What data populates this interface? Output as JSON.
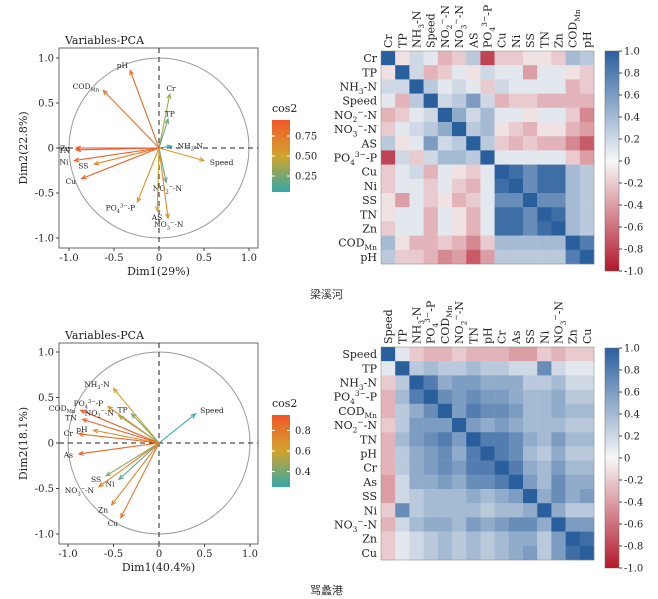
{
  "captions": [
    "梁溪河",
    "骂蠡港"
  ],
  "colors": {
    "cos2_low": "#34a7a7",
    "cos2_mid": "#d1a42c",
    "cos2_high": "#f2572a",
    "corr_pos": "#2a5f9e",
    "corr_neg": "#b2182b",
    "corr_zero": "#f7f7f7"
  },
  "chart_data": [
    {
      "type": "scatter",
      "title": "Variables-PCA",
      "xlabel": "Dim1(29%)",
      "ylabel": "Dim2(22.8%)",
      "xlim": [
        -1.0,
        1.0
      ],
      "ylim": [
        -1.0,
        1.0
      ],
      "xticks": [
        "-1.0",
        "-0.5",
        "0",
        "0.5",
        "1.0"
      ],
      "yticks": [
        "1.0",
        "0.5",
        "0",
        "-0.5",
        "-1.0"
      ],
      "legend": {
        "title": "cos2",
        "ticks": [
          "0.75",
          "0.50",
          "0.25"
        ],
        "tick_values": [
          0.75,
          0.5,
          0.25
        ],
        "range": [
          0.05,
          0.95
        ],
        "placement": "right"
      },
      "vectors": [
        {
          "label": "pH",
          "x": -0.32,
          "y": 0.86,
          "cos2": 0.85
        },
        {
          "label": "COD_Mn",
          "x": -0.62,
          "y": 0.64,
          "cos2": 0.8
        },
        {
          "label": "Cr",
          "x": 0.12,
          "y": 0.6,
          "cos2": 0.38
        },
        {
          "label": "TP",
          "x": 0.1,
          "y": 0.32,
          "cos2": 0.2
        },
        {
          "label": "NH3-N",
          "x": 0.14,
          "y": 0.02,
          "cos2": 0.08
        },
        {
          "label": "Speed",
          "x": 0.5,
          "y": -0.14,
          "cos2": 0.55
        },
        {
          "label": "NO2-N",
          "x": 0.08,
          "y": -0.38,
          "cos2": 0.2
        },
        {
          "label": "NO3-N",
          "x": 0.1,
          "y": -0.78,
          "cos2": 0.62
        },
        {
          "label": "AS",
          "x": -0.02,
          "y": -0.7,
          "cos2": 0.5
        },
        {
          "label": "PO4-P",
          "x": -0.24,
          "y": -0.6,
          "cos2": 0.58
        },
        {
          "label": "TN",
          "x": -0.92,
          "y": -0.02,
          "cos2": 0.95
        },
        {
          "label": "Zn",
          "x": -0.92,
          "y": 0.0,
          "cos2": 0.95
        },
        {
          "label": "Ni",
          "x": -0.94,
          "y": -0.14,
          "cos2": 0.9
        },
        {
          "label": "SS",
          "x": -0.72,
          "y": -0.18,
          "cos2": 0.65
        },
        {
          "label": "Cu",
          "x": -0.86,
          "y": -0.34,
          "cos2": 0.9
        }
      ]
    },
    {
      "type": "heatmap",
      "scale_ticks": [
        "1.0",
        "0.8",
        "0.6",
        "0.4",
        "0.2",
        "0",
        "-0.2",
        "-0.4",
        "-0.6",
        "-0.8",
        "-1.0"
      ],
      "labels": [
        "Cr",
        "TP",
        "NH3-N",
        "Speed",
        "NO2-N",
        "NO3-N",
        "AS",
        "PO4-P",
        "Cu",
        "Ni",
        "SS",
        "TN",
        "Zn",
        "COD_Mn",
        "pH"
      ],
      "matrix": [
        [
          1,
          -0.1,
          0.2,
          0.1,
          -0.3,
          -0.2,
          0.3,
          -0.8,
          -0.2,
          -0.2,
          -0.1,
          -0.1,
          -0.2,
          0.4,
          0.3
        ],
        [
          -0.1,
          1,
          0.2,
          -0.3,
          -0.2,
          0.1,
          -0.1,
          0.2,
          0.1,
          0.1,
          -0.4,
          0.1,
          0.1,
          -0.1,
          -0.2
        ],
        [
          0.2,
          0.2,
          1,
          0.3,
          0.1,
          0.2,
          0.1,
          -0.2,
          0.2,
          0.1,
          0.1,
          0.1,
          0.1,
          -0.3,
          -0.2
        ],
        [
          0.1,
          -0.3,
          0.3,
          1,
          0.2,
          0.3,
          0.6,
          0.2,
          -0.3,
          -0.2,
          -0.2,
          -0.3,
          -0.3,
          -0.3,
          -0.3
        ],
        [
          -0.3,
          -0.2,
          0.1,
          0.2,
          1,
          0.5,
          0.2,
          0.4,
          0.1,
          0.1,
          -0.1,
          0.1,
          0.1,
          -0.2,
          -0.5
        ],
        [
          -0.2,
          0.1,
          0.2,
          0.3,
          0.5,
          1,
          0.3,
          0.4,
          -0.1,
          -0.2,
          -0.3,
          -0.1,
          -0.1,
          -0.3,
          -0.4
        ],
        [
          0.3,
          -0.1,
          0.1,
          0.6,
          0.2,
          0.3,
          1,
          0.3,
          -0.2,
          -0.3,
          -0.2,
          -0.3,
          -0.3,
          -0.5,
          -0.7
        ],
        [
          -0.8,
          0.2,
          -0.2,
          0.2,
          0.4,
          0.4,
          0.3,
          1,
          0.1,
          0.1,
          0.1,
          0.1,
          0.1,
          -0.2,
          -0.4
        ],
        [
          -0.2,
          0.1,
          0.2,
          -0.3,
          0.1,
          -0.1,
          -0.2,
          0.1,
          1,
          0.9,
          0.7,
          0.9,
          0.9,
          0.4,
          0.3
        ],
        [
          -0.2,
          0.1,
          0.1,
          -0.2,
          0.1,
          -0.2,
          -0.3,
          0.1,
          0.9,
          1,
          0.7,
          0.9,
          0.9,
          0.4,
          0.3
        ],
        [
          -0.1,
          -0.4,
          0.1,
          -0.2,
          -0.1,
          -0.3,
          -0.2,
          0.1,
          0.7,
          0.7,
          1,
          0.7,
          0.7,
          0.4,
          0.3
        ],
        [
          -0.1,
          0.1,
          0.1,
          -0.3,
          0.1,
          -0.1,
          -0.3,
          0.1,
          0.9,
          0.9,
          0.7,
          1,
          0.9,
          0.4,
          0.3
        ],
        [
          -0.2,
          0.1,
          0.1,
          -0.3,
          0.1,
          -0.1,
          -0.3,
          0.1,
          0.9,
          0.9,
          0.7,
          0.9,
          1,
          0.4,
          0.3
        ],
        [
          0.4,
          -0.1,
          -0.3,
          -0.3,
          -0.2,
          -0.3,
          -0.5,
          -0.2,
          0.4,
          0.4,
          0.4,
          0.4,
          0.4,
          1,
          0.8
        ],
        [
          0.3,
          -0.2,
          -0.2,
          -0.3,
          -0.5,
          -0.4,
          -0.7,
          -0.4,
          0.3,
          0.3,
          0.3,
          0.3,
          0.3,
          0.8,
          1
        ]
      ]
    },
    {
      "type": "scatter",
      "title": "Variables-PCA",
      "xlabel": "Dim1(40.4%)",
      "ylabel": "Dim2(18.1%)",
      "xlim": [
        -1.0,
        1.0
      ],
      "ylim": [
        -1.0,
        1.0
      ],
      "xticks": [
        "-1.0",
        "-0.5",
        "0",
        "0.5",
        "1.0"
      ],
      "yticks": [
        "1.0",
        "0.5",
        "0",
        "-0.5",
        "-1.0"
      ],
      "legend": {
        "title": "cos2",
        "ticks": [
          "0.8",
          "0.6",
          "0.4"
        ],
        "tick_values": [
          0.8,
          0.6,
          0.4
        ],
        "range": [
          0.25,
          0.95
        ],
        "placement": "right"
      },
      "vectors": [
        {
          "label": "NH3-N",
          "x": -0.5,
          "y": 0.6,
          "cos2": 0.6
        },
        {
          "label": "PO4-P",
          "x": -0.56,
          "y": 0.4,
          "cos2": 0.7
        },
        {
          "label": "COD_Mn",
          "x": -0.86,
          "y": 0.36,
          "cos2": 0.92
        },
        {
          "label": "TN",
          "x": -0.84,
          "y": 0.26,
          "cos2": 0.9
        },
        {
          "label": "NO2-N",
          "x": -0.44,
          "y": 0.3,
          "cos2": 0.5
        },
        {
          "label": "TP",
          "x": -0.3,
          "y": 0.32,
          "cos2": 0.4
        },
        {
          "label": "Cr",
          "x": -0.88,
          "y": 0.1,
          "cos2": 0.85
        },
        {
          "label": "pH",
          "x": -0.72,
          "y": 0.14,
          "cos2": 0.7
        },
        {
          "label": "As",
          "x": -0.88,
          "y": -0.12,
          "cos2": 0.88
        },
        {
          "label": "Speed",
          "x": 0.4,
          "y": 0.32,
          "cos2": 0.25
        },
        {
          "label": "SS",
          "x": -0.58,
          "y": -0.36,
          "cos2": 0.45
        },
        {
          "label": "Ni",
          "x": -0.44,
          "y": -0.4,
          "cos2": 0.35
        },
        {
          "label": "NO3-N",
          "x": -0.66,
          "y": -0.48,
          "cos2": 0.75
        },
        {
          "label": "Zn",
          "x": -0.52,
          "y": -0.68,
          "cos2": 0.72
        },
        {
          "label": "Cu",
          "x": -0.42,
          "y": -0.82,
          "cos2": 0.82
        }
      ]
    },
    {
      "type": "heatmap",
      "scale_ticks": [
        "1.0",
        "0.8",
        "0.6",
        "0.4",
        "0.2",
        "0",
        "-0.2",
        "-0.4",
        "-0.6",
        "-0.8",
        "-1.0"
      ],
      "labels": [
        "Speed",
        "TP",
        "NH3-N",
        "PO4-P",
        "COD_Mn",
        "NO2-N",
        "TN",
        "pH",
        "Cr",
        "As",
        "SS",
        "Ni",
        "NO3-N",
        "Zn",
        "Cu"
      ],
      "matrix": [
        [
          1,
          0.1,
          -0.2,
          -0.3,
          -0.3,
          -0.2,
          -0.3,
          -0.3,
          -0.3,
          -0.4,
          -0.4,
          -0.2,
          -0.3,
          -0.2,
          -0.2
        ],
        [
          0.1,
          1,
          0.3,
          0.4,
          0.3,
          0.3,
          0.4,
          0.3,
          0.3,
          0.2,
          0.2,
          0.7,
          0.2,
          0.1,
          0.1
        ],
        [
          -0.2,
          0.3,
          1,
          0.8,
          0.5,
          0.6,
          0.6,
          0.5,
          0.5,
          0.5,
          0.3,
          0.3,
          0.4,
          0.2,
          0.2
        ],
        [
          -0.3,
          0.4,
          0.8,
          1,
          0.7,
          0.6,
          0.7,
          0.6,
          0.6,
          0.5,
          0.4,
          0.4,
          0.5,
          0.3,
          0.3
        ],
        [
          -0.3,
          0.3,
          0.5,
          0.7,
          1,
          0.6,
          0.8,
          0.7,
          0.7,
          0.6,
          0.4,
          0.4,
          0.5,
          0.4,
          0.4
        ],
        [
          -0.2,
          0.3,
          0.6,
          0.6,
          0.6,
          1,
          0.6,
          0.5,
          0.6,
          0.5,
          0.4,
          0.4,
          0.4,
          0.3,
          0.3
        ],
        [
          -0.3,
          0.4,
          0.6,
          0.7,
          0.8,
          0.6,
          1,
          0.8,
          0.8,
          0.7,
          0.5,
          0.4,
          0.6,
          0.4,
          0.4
        ],
        [
          -0.3,
          0.3,
          0.5,
          0.6,
          0.7,
          0.5,
          0.8,
          1,
          0.8,
          0.7,
          0.4,
          0.3,
          0.5,
          0.3,
          0.3
        ],
        [
          -0.3,
          0.3,
          0.5,
          0.6,
          0.7,
          0.6,
          0.8,
          0.8,
          1,
          0.8,
          0.5,
          0.4,
          0.6,
          0.4,
          0.4
        ],
        [
          -0.4,
          0.2,
          0.5,
          0.5,
          0.6,
          0.5,
          0.7,
          0.7,
          0.8,
          1,
          0.6,
          0.4,
          0.7,
          0.5,
          0.5
        ],
        [
          -0.4,
          0.2,
          0.3,
          0.4,
          0.4,
          0.4,
          0.5,
          0.4,
          0.5,
          0.6,
          1,
          0.5,
          0.7,
          0.5,
          0.6
        ],
        [
          -0.2,
          0.7,
          0.3,
          0.4,
          0.4,
          0.4,
          0.4,
          0.3,
          0.4,
          0.4,
          0.5,
          1,
          0.5,
          0.3,
          0.3
        ],
        [
          -0.3,
          0.2,
          0.4,
          0.5,
          0.5,
          0.4,
          0.6,
          0.5,
          0.6,
          0.7,
          0.7,
          0.5,
          1,
          0.6,
          0.6
        ],
        [
          -0.2,
          0.1,
          0.2,
          0.3,
          0.4,
          0.3,
          0.4,
          0.3,
          0.4,
          0.5,
          0.5,
          0.3,
          0.6,
          1,
          0.9
        ],
        [
          -0.2,
          0.1,
          0.2,
          0.3,
          0.4,
          0.3,
          0.4,
          0.3,
          0.4,
          0.5,
          0.6,
          0.3,
          0.6,
          0.9,
          1
        ]
      ]
    }
  ]
}
